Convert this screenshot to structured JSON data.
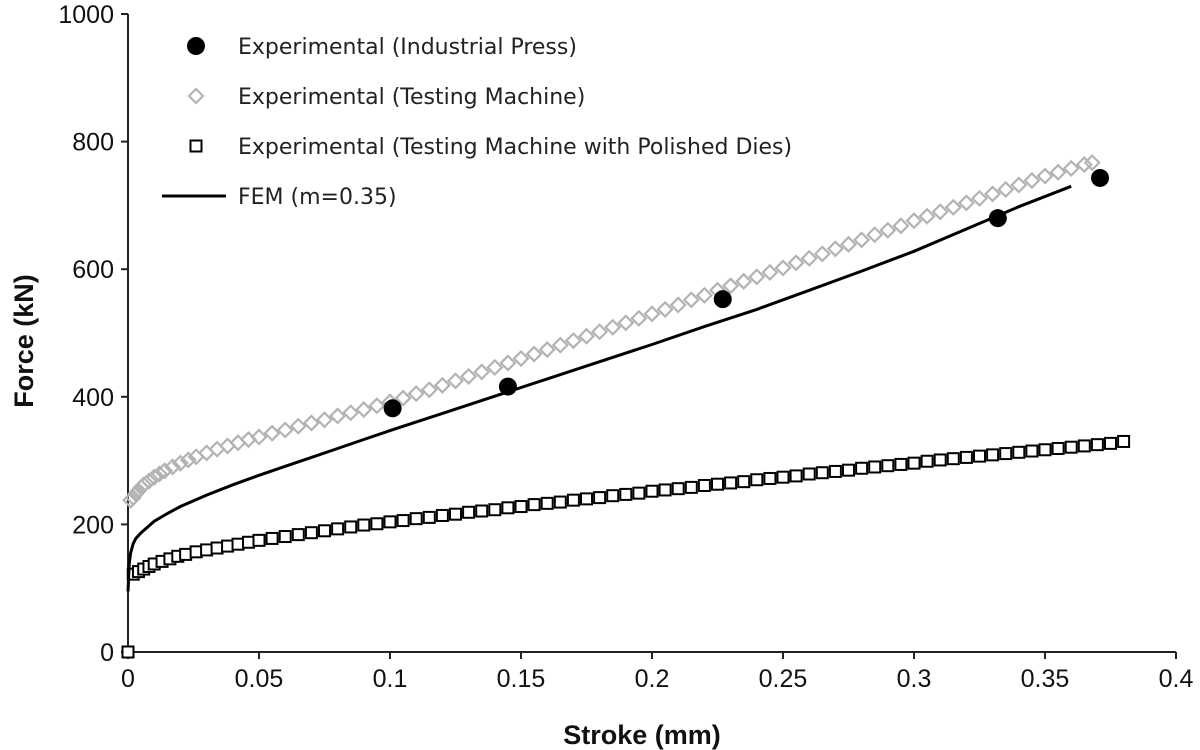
{
  "chart_data": {
    "type": "scatter",
    "title": "",
    "xlabel": "Stroke (mm)",
    "ylabel": "Force (kN)",
    "xlim": [
      0,
      0.4
    ],
    "ylim": [
      0,
      1000
    ],
    "x_ticks": [
      0,
      0.05,
      0.1,
      0.15,
      0.2,
      0.25,
      0.3,
      0.35,
      0.4
    ],
    "x_tick_labels": [
      "0",
      "0.05",
      "0.1",
      "0.15",
      "0.2",
      "0.25",
      "0.3",
      "0.35",
      "0.4"
    ],
    "y_ticks": [
      0,
      200,
      400,
      600,
      800,
      1000
    ],
    "y_tick_labels": [
      "0",
      "200",
      "400",
      "600",
      "800",
      "1000"
    ],
    "grid": false,
    "legend_position": "top-left",
    "series": [
      {
        "name": "Experimental (Industrial Press)",
        "marker": "filled-circle",
        "color": "#000000",
        "x": [
          0.101,
          0.145,
          0.227,
          0.332,
          0.371
        ],
        "y": [
          382,
          416,
          553,
          680,
          743
        ]
      },
      {
        "name": "Experimental (Testing Machine)",
        "marker": "open-diamond",
        "color": "#b3b3b3",
        "x": [
          0.001,
          0.002,
          0.003,
          0.004,
          0.005,
          0.006,
          0.008,
          0.01,
          0.012,
          0.014,
          0.017,
          0.02,
          0.023,
          0.026,
          0.03,
          0.034,
          0.038,
          0.042,
          0.046,
          0.05,
          0.055,
          0.06,
          0.065,
          0.07,
          0.075,
          0.08,
          0.085,
          0.09,
          0.095,
          0.1,
          0.105,
          0.11,
          0.115,
          0.12,
          0.125,
          0.13,
          0.135,
          0.14,
          0.145,
          0.15,
          0.155,
          0.16,
          0.165,
          0.17,
          0.175,
          0.18,
          0.185,
          0.19,
          0.195,
          0.2,
          0.205,
          0.21,
          0.215,
          0.22,
          0.225,
          0.23,
          0.235,
          0.24,
          0.245,
          0.25,
          0.255,
          0.26,
          0.265,
          0.27,
          0.275,
          0.28,
          0.285,
          0.29,
          0.295,
          0.3,
          0.305,
          0.31,
          0.315,
          0.32,
          0.325,
          0.33,
          0.335,
          0.34,
          0.345,
          0.35,
          0.355,
          0.36,
          0.365,
          0.368
        ],
        "y": [
          238,
          242,
          248,
          253,
          258,
          262,
          268,
          274,
          279,
          284,
          290,
          296,
          301,
          306,
          312,
          318,
          323,
          328,
          333,
          337,
          343,
          348,
          354,
          359,
          364,
          370,
          375,
          380,
          386,
          392,
          398,
          405,
          411,
          418,
          425,
          432,
          439,
          446,
          453,
          460,
          467,
          474,
          481,
          488,
          495,
          502,
          509,
          516,
          523,
          530,
          537,
          544,
          552,
          559,
          567,
          574,
          581,
          588,
          595,
          602,
          610,
          617,
          624,
          632,
          639,
          646,
          654,
          661,
          668,
          676,
          683,
          690,
          697,
          704,
          711,
          718,
          725,
          732,
          739,
          746,
          752,
          758,
          764,
          767
        ]
      },
      {
        "name": "Experimental (Testing Machine with Polished Dies)",
        "marker": "open-square",
        "color": "#000000",
        "x": [
          0.0,
          0.002,
          0.004,
          0.006,
          0.008,
          0.01,
          0.013,
          0.016,
          0.019,
          0.022,
          0.026,
          0.03,
          0.034,
          0.038,
          0.042,
          0.046,
          0.05,
          0.055,
          0.06,
          0.065,
          0.07,
          0.075,
          0.08,
          0.085,
          0.09,
          0.095,
          0.1,
          0.105,
          0.11,
          0.115,
          0.12,
          0.125,
          0.13,
          0.135,
          0.14,
          0.145,
          0.15,
          0.155,
          0.16,
          0.165,
          0.17,
          0.175,
          0.18,
          0.185,
          0.19,
          0.195,
          0.2,
          0.205,
          0.21,
          0.215,
          0.22,
          0.225,
          0.23,
          0.235,
          0.24,
          0.245,
          0.25,
          0.255,
          0.26,
          0.265,
          0.27,
          0.275,
          0.28,
          0.285,
          0.29,
          0.295,
          0.3,
          0.305,
          0.31,
          0.315,
          0.32,
          0.325,
          0.33,
          0.335,
          0.34,
          0.345,
          0.35,
          0.355,
          0.36,
          0.365,
          0.37,
          0.375,
          0.38
        ],
        "y": [
          0,
          122,
          126,
          130,
          134,
          138,
          142,
          146,
          150,
          153,
          157,
          160,
          163,
          166,
          169,
          172,
          175,
          178,
          181,
          184,
          187,
          190,
          193,
          196,
          199,
          201,
          204,
          206,
          209,
          211,
          214,
          216,
          219,
          221,
          223,
          226,
          228,
          231,
          233,
          235,
          238,
          240,
          242,
          245,
          247,
          249,
          252,
          254,
          256,
          258,
          261,
          263,
          265,
          267,
          270,
          272,
          274,
          276,
          279,
          281,
          283,
          285,
          288,
          290,
          292,
          294,
          296,
          299,
          301,
          303,
          305,
          307,
          309,
          311,
          313,
          315,
          317,
          319,
          321,
          323,
          325,
          327,
          330
        ]
      },
      {
        "name": "FEM (m=0.35)",
        "marker": "line",
        "color": "#000000",
        "x": [
          0.0,
          0.0005,
          0.001,
          0.002,
          0.003,
          0.005,
          0.0075,
          0.01,
          0.015,
          0.02,
          0.03,
          0.04,
          0.05,
          0.06,
          0.07,
          0.08,
          0.09,
          0.1,
          0.12,
          0.14,
          0.16,
          0.18,
          0.2,
          0.22,
          0.24,
          0.26,
          0.28,
          0.3,
          0.32,
          0.34,
          0.36
        ],
        "y": [
          95,
          140,
          155,
          170,
          178,
          187,
          196,
          205,
          217,
          228,
          246,
          262,
          277,
          291,
          305,
          319,
          333,
          347,
          374,
          401,
          428,
          455,
          482,
          510,
          537,
          567,
          597,
          628,
          663,
          698,
          730
        ]
      }
    ]
  }
}
